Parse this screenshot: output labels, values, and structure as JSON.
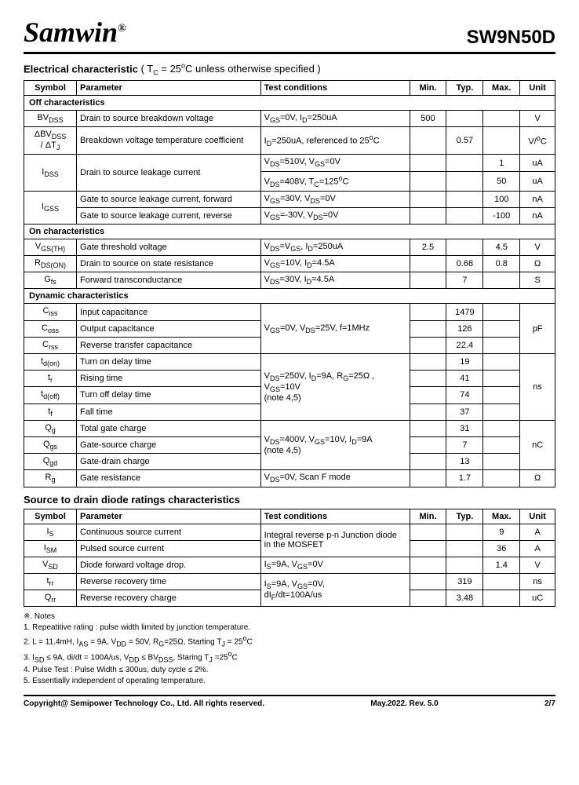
{
  "header": {
    "brand": "Samwin",
    "reg": "®",
    "partNumber": "SW9N50D"
  },
  "section1": {
    "title": "Electrical characteristic",
    "cond": " ( T",
    "condSub": "C",
    "cond2": " = 25",
    "condSup": "o",
    "cond3": "C unless otherwise specified )"
  },
  "columns": {
    "symbol": "Symbol",
    "parameter": "Parameter",
    "conditions": "Test conditions",
    "min": "Min.",
    "typ": "Typ.",
    "max": "Max.",
    "unit": "Unit"
  },
  "sub1": "Off characteristics",
  "r1": {
    "sym": "BV",
    "symSub": "DSS",
    "param": "Drain to source breakdown voltage",
    "cond": "V<sub>GS</sub>=0V, I<sub>D</sub>=250uA",
    "min": "500",
    "typ": "",
    "max": "",
    "unit": "V"
  },
  "r2": {
    "sym": "ΔBV",
    "symSub": "DSS",
    "sym2": " / ΔT",
    "symSub2": "J",
    "param": "Breakdown voltage temperature coefficient",
    "cond": "I<sub>D</sub>=250uA, referenced to 25<sup>o</sup>C",
    "min": "",
    "typ": "0.57",
    "max": "",
    "unit": "V/<sup>o</sup>C"
  },
  "r3": {
    "sym": "I",
    "symSub": "DSS",
    "param": "Drain to source leakage current",
    "cond1": "V<sub>DS</sub>=510V, V<sub>GS</sub>=0V",
    "min1": "",
    "typ1": "",
    "max1": "1",
    "unit1": "uA",
    "cond2": "V<sub>DS</sub>=408V, T<sub>C</sub>=125<sup>o</sup>C",
    "min2": "",
    "typ2": "",
    "max2": "50",
    "unit2": "uA"
  },
  "r4": {
    "sym": "I",
    "symSub": "GSS",
    "param1": "Gate to source leakage current, forward",
    "cond1": "V<sub>GS</sub>=30V, V<sub>DS</sub>=0V",
    "max1": "100",
    "unit1": "nA",
    "param2": "Gate to source leakage current, reverse",
    "cond2": "V<sub>GS</sub>=-30V, V<sub>DS</sub>=0V",
    "max2": "-100",
    "unit2": "nA"
  },
  "sub2": "On characteristics",
  "r5": {
    "sym": "V",
    "symSub": "GS(TH)",
    "param": "Gate threshold voltage",
    "cond": "V<sub>DS</sub>=V<sub>GS</sub>, I<sub>D</sub>=250uA",
    "min": "2.5",
    "typ": "",
    "max": "4.5",
    "unit": "V"
  },
  "r6": {
    "sym": "R",
    "symSub": "DS(ON)",
    "param": "Drain to source on state resistance",
    "cond": "V<sub>GS</sub>=10V, I<sub>D</sub>=4.5A",
    "min": "",
    "typ": "0.68",
    "max": "0.8",
    "unit": "Ω"
  },
  "r7": {
    "sym": "G",
    "symSub": "fs",
    "param": "Forward transconductance",
    "cond": "V<sub>DS</sub>=30V, I<sub>D</sub>=4.5A",
    "min": "",
    "typ": "7",
    "max": "",
    "unit": "S"
  },
  "sub3": "Dynamic characteristics",
  "r8": {
    "sym": "C",
    "symSub": "iss",
    "param": "Input capacitance",
    "typ": "1479"
  },
  "r9": {
    "sym": "C",
    "symSub": "oss",
    "param": "Output capacitance",
    "cond": "V<sub>GS</sub>=0V, V<sub>DS</sub>=25V, f=1MHz",
    "typ": "126",
    "unit": "pF"
  },
  "r10": {
    "sym": "C",
    "symSub": "rss",
    "param": "Reverse transfer capacitance",
    "typ": "22.4"
  },
  "r11": {
    "sym": "t",
    "symSub": "d(on)",
    "param": "Turn on delay time",
    "typ": "19"
  },
  "r12": {
    "sym": "t",
    "symSub": "r",
    "param": "Rising time",
    "cond": "V<sub>DS</sub>=250V, I<sub>D</sub>=9A, R<sub>G</sub>=25Ω ,<br>V<sub>GS</sub>=10V<br>(note 4,5)",
    "typ": "41",
    "unit": "ns"
  },
  "r13": {
    "sym": "t",
    "symSub": "d(off)",
    "param": "Turn off delay time",
    "typ": "74"
  },
  "r14": {
    "sym": "t",
    "symSub": "f",
    "param": "Fall time",
    "typ": "37"
  },
  "r15": {
    "sym": "Q",
    "symSub": "g",
    "param": "Total gate charge",
    "typ": "31"
  },
  "r16": {
    "sym": "Q",
    "symSub": "gs",
    "param": "Gate-source charge",
    "cond": "V<sub>DS</sub>=400V, V<sub>GS</sub>=10V, I<sub>D</sub>=9A<br>(note 4,5)",
    "typ": "7",
    "unit": "nC"
  },
  "r17": {
    "sym": "Q",
    "symSub": "gd",
    "param": "Gate-drain charge",
    "typ": "13"
  },
  "r18": {
    "sym": "R",
    "symSub": "g",
    "param": "Gate resistance",
    "cond": "V<sub>DS</sub>=0V, Scan F mode",
    "typ": "1.7",
    "unit": "Ω"
  },
  "section2": {
    "title": "Source to drain diode ratings characteristics"
  },
  "d1": {
    "sym": "I",
    "symSub": "S",
    "param": "Continuous source current",
    "cond": "Integral reverse p-n Junction diode in the MOSFET",
    "max": "9",
    "unit": "A"
  },
  "d2": {
    "sym": "I",
    "symSub": "SM",
    "param": "Pulsed source current",
    "max": "36",
    "unit": "A"
  },
  "d3": {
    "sym": "V",
    "symSub": "SD",
    "param": "Diode forward voltage drop.",
    "cond": "I<sub>S</sub>=9A, V<sub>GS</sub>=0V",
    "max": "1.4",
    "unit": "V"
  },
  "d4": {
    "sym": "t",
    "symSub": "rr",
    "param": "Reverse recovery time",
    "cond": "I<sub>S</sub>=9A, V<sub>GS</sub>=0V,<br>dI<sub>F</sub>/dt=100A/us",
    "typ": "319",
    "unit": "ns"
  },
  "d5": {
    "sym": "Q",
    "symSub": "rr",
    "param": "Reverse recovery charge",
    "typ": "3.48",
    "unit": "uC"
  },
  "notes": {
    "title": "※. Notes",
    "n1": "1.      Repeatitive rating : pulse width limited by junction temperature.",
    "n2": "2.      L = 11.4mH, I<sub>AS</sub> = 9A, V<sub>DD</sub> = 50V, R<sub>G</sub>=25Ω, Starting T<sub>J</sub> = 25<sup>o</sup>C",
    "n3": "3.      I<sub>SD</sub> ≤ 9A, di/dt = 100A/us, V<sub>DD</sub> ≤ BV<sub>DSS</sub>, Staring T<sub>J</sub> =25<sup>o</sup>C",
    "n4": "4.      Pulse Test : Pulse Width ≤ 300us, duty cycle ≤ 2%.",
    "n5": "5.      Essentially independent of operating temperature."
  },
  "footer": {
    "copyright": "Copyright@ Semipower Technology Co., Ltd. All rights reserved.",
    "rev": "May.2022. Rev. 5.0",
    "page": "2/7"
  }
}
